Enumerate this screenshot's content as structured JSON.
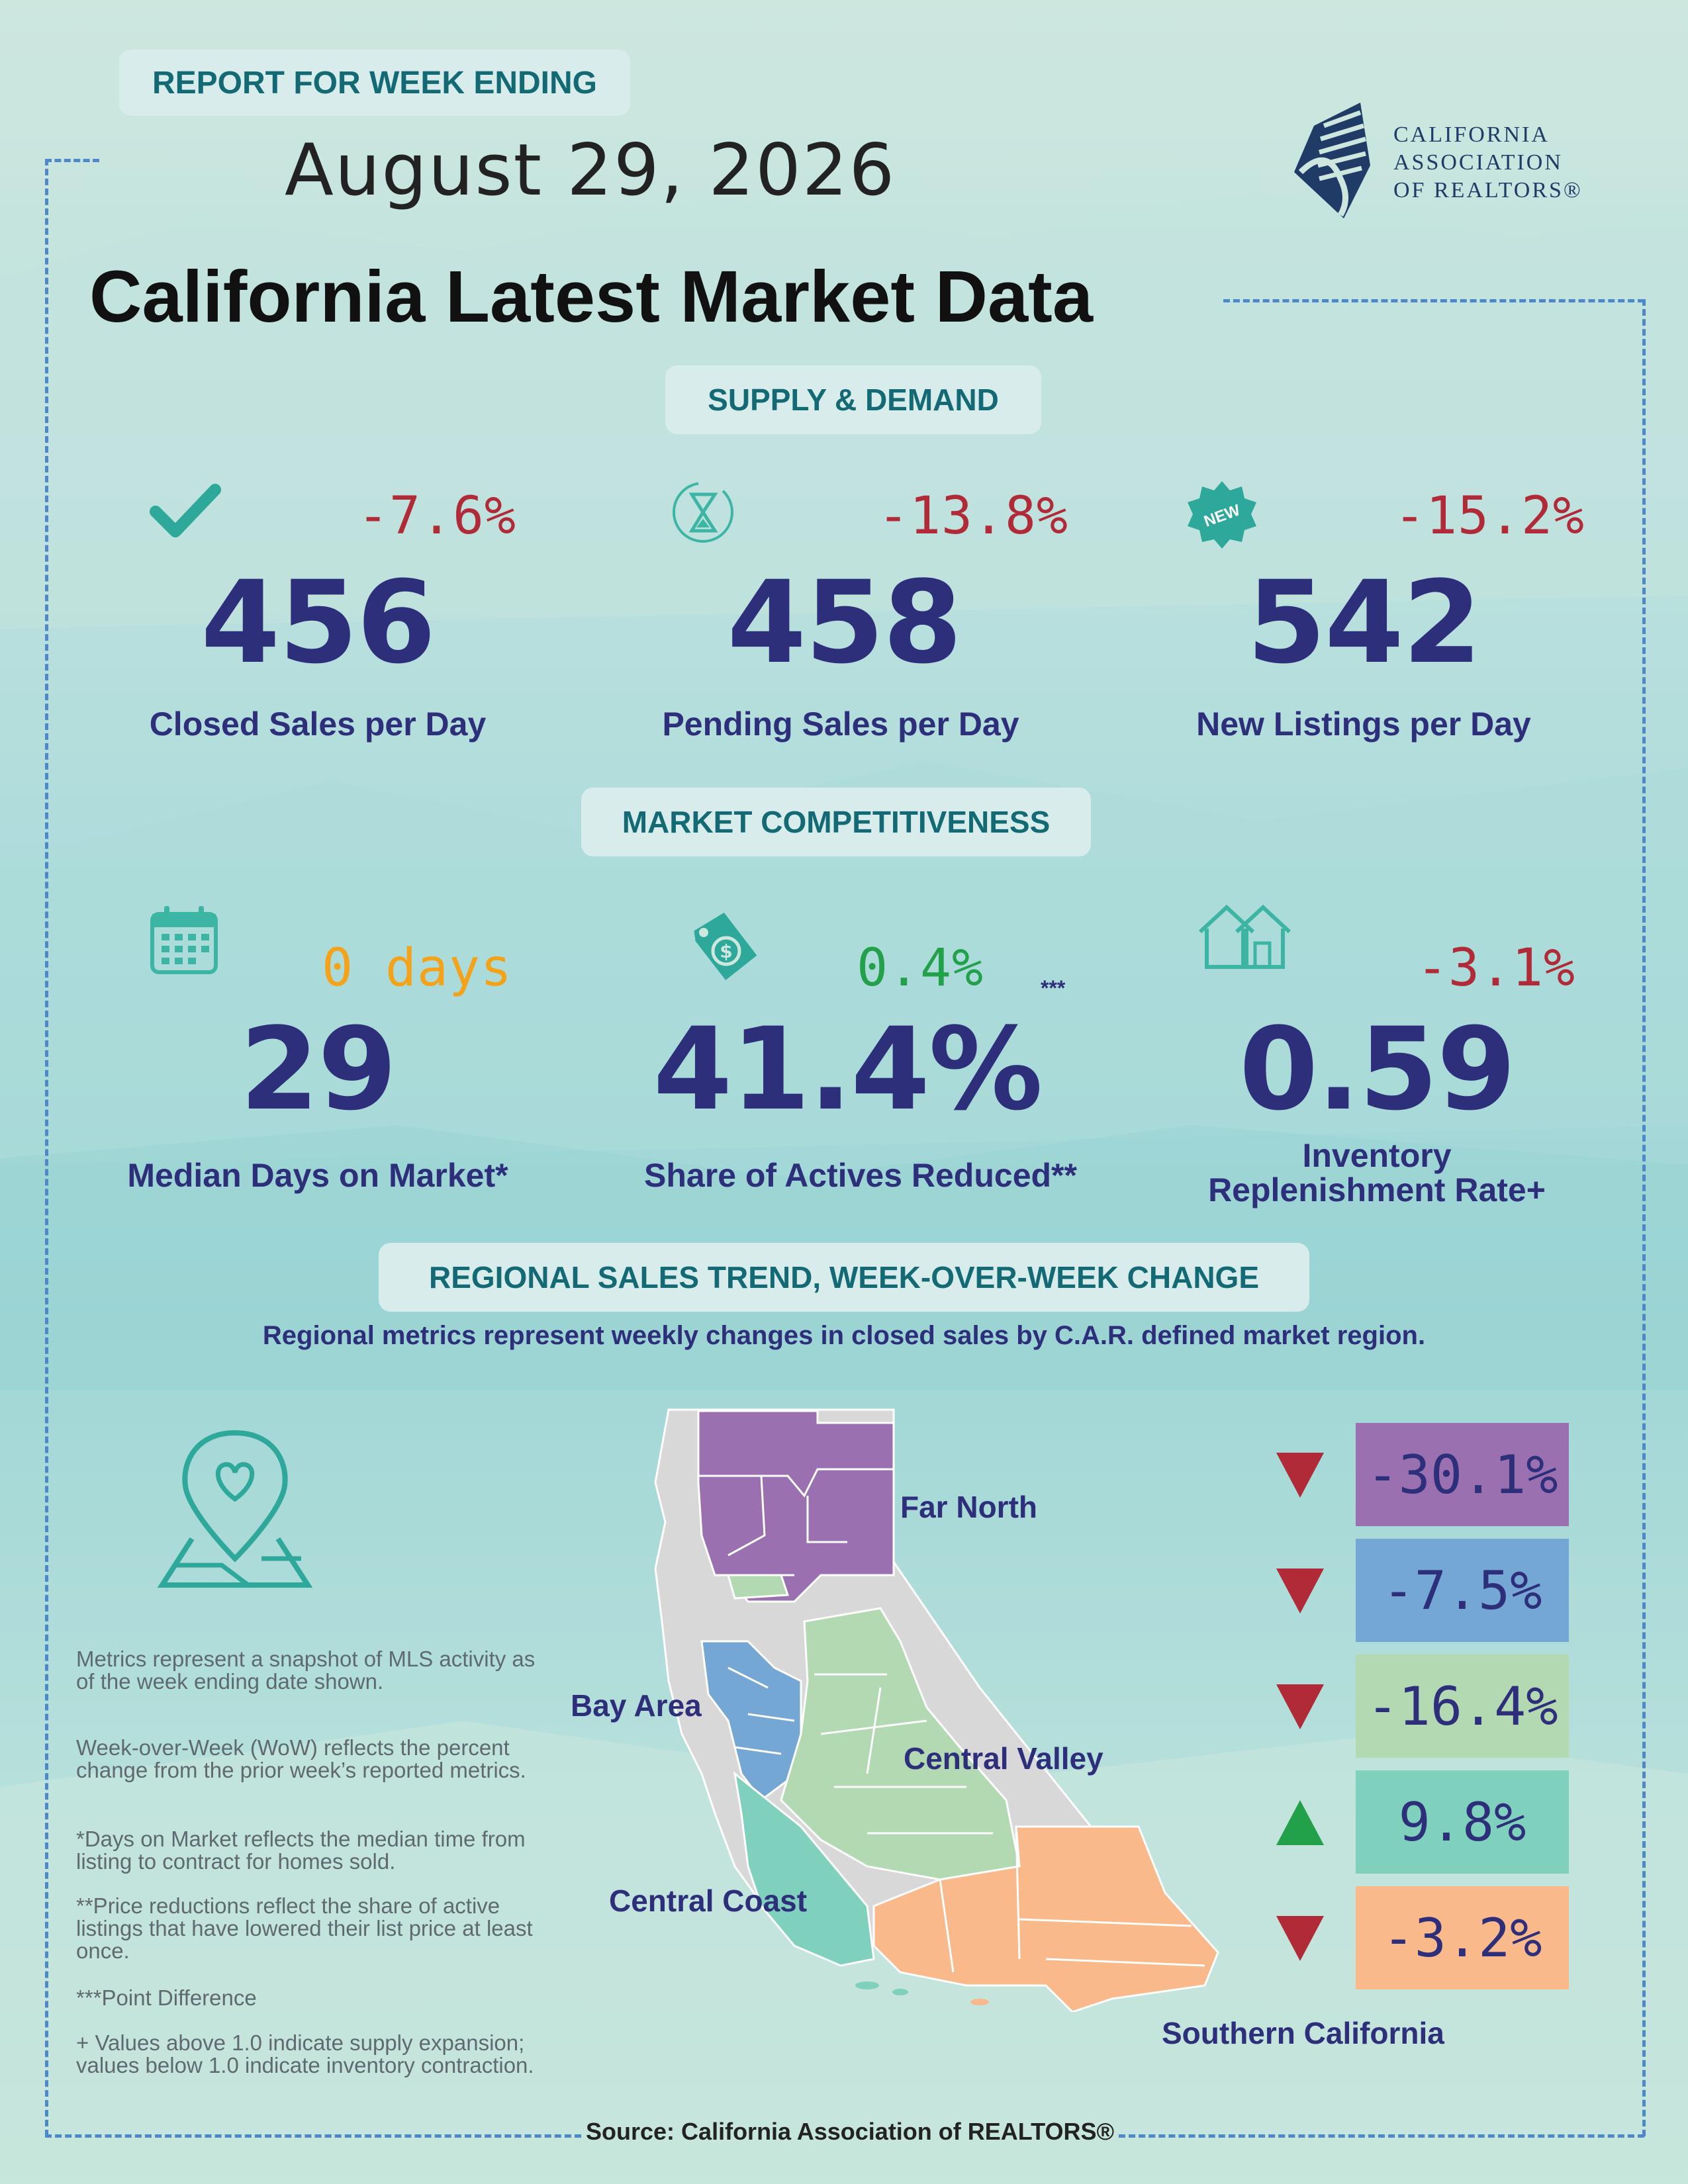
{
  "header": {
    "report_label": "REPORT FOR WEEK ENDING",
    "date": "August 29, 2026",
    "title": "California Latest Market Data",
    "logo_lines": [
      "CALIFORNIA",
      "ASSOCIATION",
      "OF REALTORS®"
    ]
  },
  "supply_demand": {
    "heading": "SUPPLY & DEMAND",
    "metrics": [
      {
        "icon": "checkmark-icon",
        "change": "-7.6%",
        "value": "456",
        "label": "Closed Sales per Day"
      },
      {
        "icon": "hourglass-icon",
        "change": "-13.8%",
        "value": "458",
        "label": "Pending Sales per Day"
      },
      {
        "icon": "new-badge-icon",
        "change": "-15.2%",
        "value": "542",
        "label": "New Listings per Day",
        "badge": "NEW"
      }
    ]
  },
  "competitiveness": {
    "heading": "MARKET COMPETITIVENESS",
    "metrics": [
      {
        "icon": "calendar-icon",
        "change": "0 days",
        "value": "29",
        "label": "Median Days on Market*"
      },
      {
        "icon": "price-tag-icon",
        "change": "0.4%",
        "change_note": "***",
        "value": "41.4%",
        "label": "Share of Actives Reduced**"
      },
      {
        "icon": "houses-icon",
        "change": "-3.1%",
        "value": "0.59",
        "label_line1": "Inventory",
        "label_line2": "Replenishment Rate+"
      }
    ]
  },
  "regional": {
    "heading": "REGIONAL SALES TREND, WEEK-OVER-WEEK CHANGE",
    "subheading": "Regional metrics represent weekly changes in closed sales by C.A.R. defined market region.",
    "regions": [
      {
        "name": "Far North",
        "change": "-30.1%",
        "direction": "down",
        "color": "#9b70b0"
      },
      {
        "name": "Bay Area",
        "change": "-7.5%",
        "direction": "down",
        "color": "#74a7d4"
      },
      {
        "name": "Central Valley",
        "change": "-16.4%",
        "direction": "down",
        "color": "#b2d9b2"
      },
      {
        "name": "Central Coast",
        "change": "9.8%",
        "direction": "up",
        "color": "#7fd0bc"
      },
      {
        "name": "Southern California",
        "change": "-3.2%",
        "direction": "down",
        "color": "#f9b98a"
      }
    ]
  },
  "notes": [
    "Metrics represent a snapshot of MLS activity as of the week ending date shown.",
    "Week-over-Week (WoW) reflects the percent change from the prior week’s reported metrics.",
    "*Days on Market reflects the median time from listing to contract for homes sold.",
    "**Price reductions reflect the share of active listings that have lowered their list price at least once.",
    "***Point Difference",
    "+ Values above 1.0 indicate supply expansion; values below 1.0 indicate inventory contraction."
  ],
  "footer": {
    "source": "Source: California Association of REALTORS®"
  }
}
